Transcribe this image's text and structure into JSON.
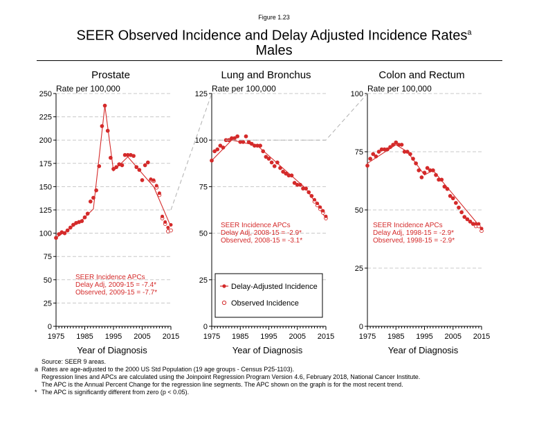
{
  "header": {
    "figure_label": "Figure 1.23",
    "title": "SEER Observed Incidence and Delay Adjusted Incidence Rates",
    "title_superscript": "a",
    "subtitle": "Males"
  },
  "colors": {
    "series": "#d42a2a",
    "grid": "#c8c8c8",
    "connector": "#b0b0b0",
    "annotation": "#d42a2a"
  },
  "legend": {
    "delay_label": "Delay-Adjusted Incidence",
    "observed_label": "Observed Incidence"
  },
  "footnotes": {
    "source": "Source: SEER 9 areas.",
    "a_marker": "a",
    "a_line1": "Rates are age-adjusted to the 2000 US Std Population (19 age groups - Census P25-1103).",
    "a_line2": "Regression lines and APCs are calculated using the Joinpoint Regression Program Version 4.6, February 2018, National Cancer Institute.",
    "a_line3": "The APC is the Annual Percent Change for the regression line segments. The APC shown on the graph is for the most recent trend.",
    "star_marker": "*",
    "star_line": "The APC is significantly different from zero (p < 0.05)."
  },
  "chart_data": [
    {
      "type": "scatter",
      "title": "Prostate",
      "ylabel": "Rate per 100,000",
      "xlabel": "Year of Diagnosis",
      "xlim": [
        1975,
        2015
      ],
      "ylim": [
        0,
        250
      ],
      "x_ticks": [
        1975,
        1985,
        1995,
        2005,
        2015
      ],
      "y_ticks": [
        0,
        25,
        50,
        75,
        100,
        125,
        150,
        175,
        200,
        225,
        250
      ],
      "grid": true,
      "annotation": [
        "SEER Incidence APCs",
        "Delay Adj, 2009-15 = -7.4*",
        "Observed, 2009-15 = -7.7*"
      ],
      "years": [
        1975,
        1976,
        1977,
        1978,
        1979,
        1980,
        1981,
        1982,
        1983,
        1984,
        1985,
        1986,
        1987,
        1988,
        1989,
        1990,
        1991,
        1992,
        1993,
        1994,
        1995,
        1996,
        1997,
        1998,
        1999,
        2000,
        2001,
        2002,
        2003,
        2004,
        2005,
        2006,
        2007,
        2008,
        2009,
        2010,
        2011,
        2012,
        2013,
        2014,
        2015
      ],
      "series": [
        {
          "name": "Delay-Adjusted Incidence",
          "values": [
            95,
            99,
            101,
            100,
            103,
            106,
            109,
            111,
            112,
            113,
            117,
            121,
            134,
            138,
            146,
            172,
            215,
            237,
            210,
            181,
            169,
            171,
            174,
            173,
            184,
            184,
            184,
            183,
            171,
            168,
            157,
            173,
            176,
            158,
            157,
            151,
            143,
            118,
            112,
            106,
            109
          ]
        },
        {
          "name": "Observed Incidence",
          "values": [
            95,
            99,
            101,
            100,
            103,
            106,
            109,
            111,
            112,
            113,
            117,
            121,
            134,
            138,
            146,
            172,
            215,
            237,
            210,
            181,
            169,
            171,
            174,
            173,
            184,
            184,
            184,
            183,
            171,
            168,
            157,
            173,
            176,
            157,
            156,
            149,
            141,
            116,
            110,
            102,
            103
          ]
        }
      ],
      "regression": [
        [
          1975,
          95
        ],
        [
          1984,
          114
        ],
        [
          1988,
          126
        ],
        [
          1992,
          237
        ],
        [
          1995,
          167
        ],
        [
          2000,
          182
        ],
        [
          2007,
          157
        ],
        [
          2009,
          150
        ],
        [
          2015,
          107
        ]
      ]
    },
    {
      "type": "scatter",
      "title": "Lung and Bronchus",
      "ylabel": "Rate per 100,000",
      "xlabel": "Year of Diagnosis",
      "xlim": [
        1975,
        2015
      ],
      "ylim": [
        0,
        125
      ],
      "x_ticks": [
        1975,
        1985,
        1995,
        2005,
        2015
      ],
      "y_ticks": [
        0,
        25,
        50,
        75,
        100,
        125
      ],
      "grid": true,
      "annotation": [
        "SEER Incidence APCs",
        "Delay Adj, 2008-15 = -2.9*",
        "Observed, 2008-15 = -3.1*"
      ],
      "years": [
        1975,
        1976,
        1977,
        1978,
        1979,
        1980,
        1981,
        1982,
        1983,
        1984,
        1985,
        1986,
        1987,
        1988,
        1989,
        1990,
        1991,
        1992,
        1993,
        1994,
        1995,
        1996,
        1997,
        1998,
        1999,
        2000,
        2001,
        2002,
        2003,
        2004,
        2005,
        2006,
        2007,
        2008,
        2009,
        2010,
        2011,
        2012,
        2013,
        2014,
        2015
      ],
      "series": [
        {
          "name": "Delay-Adjusted Incidence",
          "values": [
            89,
            94,
            95,
            97,
            96,
            100,
            100,
            101,
            101,
            102,
            99,
            99,
            102,
            99,
            98,
            97,
            97,
            97,
            94,
            91,
            90,
            88,
            86,
            88,
            85,
            83,
            82,
            81,
            81,
            77,
            76,
            76,
            74,
            74,
            72,
            70,
            68,
            66,
            64,
            62,
            59
          ]
        },
        {
          "name": "Observed Incidence",
          "values": [
            89,
            94,
            95,
            97,
            96,
            100,
            100,
            101,
            101,
            102,
            99,
            99,
            102,
            99,
            98,
            97,
            97,
            97,
            94,
            91,
            90,
            88,
            86,
            88,
            85,
            83,
            82,
            81,
            81,
            77,
            76,
            76,
            74,
            74,
            72,
            70,
            67,
            65,
            63,
            61,
            58
          ]
        }
      ],
      "regression": [
        [
          1975,
          89
        ],
        [
          1982,
          100
        ],
        [
          1991,
          97
        ],
        [
          2008,
          74
        ],
        [
          2015,
          58
        ]
      ]
    },
    {
      "type": "scatter",
      "title": "Colon and Rectum",
      "ylabel": "Rate per 100,000",
      "xlabel": "Year of Diagnosis",
      "xlim": [
        1975,
        2015
      ],
      "ylim": [
        0,
        100
      ],
      "x_ticks": [
        1975,
        1985,
        1995,
        2005,
        2015
      ],
      "y_ticks": [
        0,
        25,
        50,
        75,
        100
      ],
      "grid": true,
      "annotation": [
        "SEER Incidence APCs",
        "Delay Adj, 1998-15 = -2.9*",
        "Observed, 1998-15 = -2.9*"
      ],
      "years": [
        1975,
        1976,
        1977,
        1978,
        1979,
        1980,
        1981,
        1982,
        1983,
        1984,
        1985,
        1986,
        1987,
        1988,
        1989,
        1990,
        1991,
        1992,
        1993,
        1994,
        1995,
        1996,
        1997,
        1998,
        1999,
        2000,
        2001,
        2002,
        2003,
        2004,
        2005,
        2006,
        2007,
        2008,
        2009,
        2010,
        2011,
        2012,
        2013,
        2014,
        2015
      ],
      "series": [
        {
          "name": "Delay-Adjusted Incidence",
          "values": [
            69,
            72,
            74,
            73,
            75,
            76,
            76,
            76,
            77,
            78,
            79,
            78,
            78,
            75,
            75,
            74,
            72,
            70,
            67,
            64,
            66,
            68,
            67,
            67,
            65,
            63,
            63,
            60,
            59,
            56,
            55,
            53,
            51,
            49,
            47,
            46,
            45,
            44,
            44,
            44,
            42
          ]
        },
        {
          "name": "Observed Incidence",
          "values": [
            69,
            72,
            74,
            73,
            75,
            76,
            76,
            76,
            77,
            78,
            79,
            78,
            78,
            75,
            75,
            74,
            72,
            70,
            67,
            64,
            66,
            68,
            67,
            67,
            65,
            63,
            63,
            60,
            59,
            56,
            55,
            53,
            51,
            49,
            47,
            46,
            45,
            44,
            43,
            43,
            41
          ]
        }
      ],
      "regression": [
        [
          1975,
          70
        ],
        [
          1985,
          78
        ],
        [
          1989,
          75
        ],
        [
          1995,
          65
        ],
        [
          1998,
          67
        ],
        [
          2015,
          42
        ]
      ]
    }
  ]
}
